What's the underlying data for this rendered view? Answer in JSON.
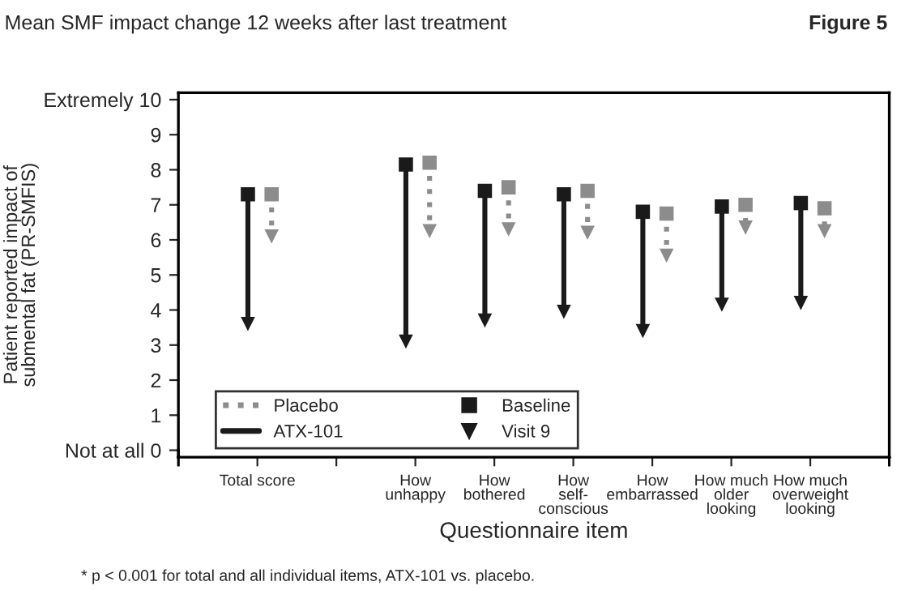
{
  "chart_data": {
    "type": "scatter",
    "title": "Figure 5",
    "subtitle": "Mean SMF impact change 12 weeks after last treatment",
    "xlabel": "Questionnaire item",
    "ylabel": "Patient reported impact of\nsubmental fat (PR-SMFIS)",
    "categories": [
      "Total score",
      null,
      "How\nunhappy",
      "How\nbothered",
      "How\nself-\nconscious",
      "How\nembarrassed",
      "How much\nolder\nlooking",
      "How much\noverweight\nlooking"
    ],
    "series": [
      {
        "color": "#8c8c8c",
        "marker": "square",
        "values": [
          7.3,
          null,
          8.2,
          7.5,
          7.4,
          6.75,
          7.0,
          6.9
        ]
      },
      {
        "name": "Placebo",
        "color": "#8c8c8c",
        "marker": "triangle",
        "line_style": "dotted",
        "values": [
          6.1,
          null,
          6.25,
          6.3,
          6.2,
          5.55,
          6.35,
          6.25
        ]
      },
      {
        "name": "Baseline",
        "color": "#1a1a1a",
        "marker": "square",
        "values": [
          7.3,
          null,
          8.15,
          7.4,
          7.3,
          6.8,
          6.95,
          7.05
        ]
      },
      {
        "name": "ATX-101",
        "color": "#1a1a1a",
        "marker": "triangle",
        "line_style": "solid",
        "values": [
          3.6,
          null,
          3.1,
          3.7,
          3.95,
          3.4,
          4.15,
          4.2
        ]
      }
    ],
    "ylim": [
      -0.2,
      10.2
    ],
    "yticks": [
      {
        "value": 0,
        "label": "Not at all 0"
      },
      1,
      2,
      3,
      4,
      5,
      6,
      7,
      8,
      9,
      {
        "value": 10,
        "label": "Extremely 10"
      }
    ],
    "grid": false,
    "legend": "bottom left",
    "annotations": [
      "* p < 0.001 for total and all individual items, ATX-101 vs. placebo.",
      "Visit 9"
    ]
  }
}
